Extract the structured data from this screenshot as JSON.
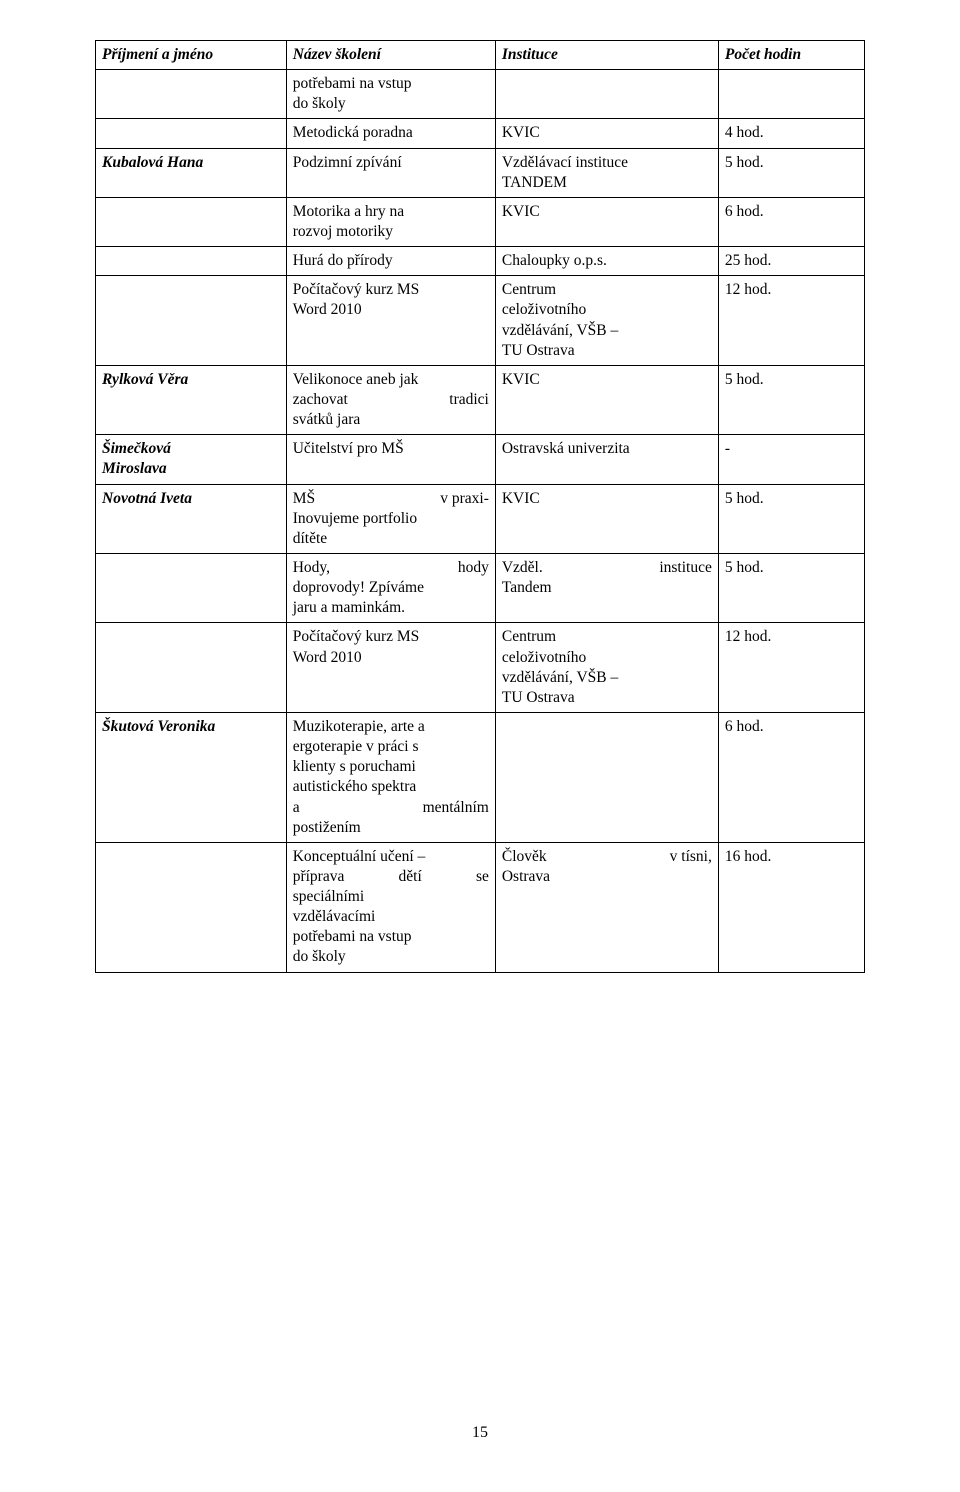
{
  "pagenum": "15",
  "headers": {
    "c1": "Příjmení a jméno",
    "c2": "Název školení",
    "c3": "Instituce",
    "c4": "Počet hodin"
  },
  "r0": {
    "c2a": "potřebami na vstup",
    "c2b": "do školy"
  },
  "r1": {
    "c2": "Metodická poradna",
    "c3": "KVIC",
    "c4": "4 hod."
  },
  "r2": {
    "c1": "Kubalová Hana",
    "c2": "Podzimní zpívání",
    "c3a": "Vzdělávací instituce",
    "c3b": "TANDEM",
    "c4": "5 hod."
  },
  "r3": {
    "c2a": "Motorika a hry na",
    "c2b": "rozvoj motoriky",
    "c3": "KVIC",
    "c4": "6 hod."
  },
  "r4": {
    "c2": "Hurá do přírody",
    "c3": "Chaloupky o.p.s.",
    "c4": "25 hod."
  },
  "r5": {
    "c2a": "Počítačový kurz MS",
    "c2b": "Word 2010",
    "c3a": "Centrum",
    "c3b": "celoživotního",
    "c3c": "vzdělávání, VŠB –",
    "c3d": "TU Ostrava",
    "c4": "12 hod."
  },
  "r6": {
    "c1": "Rylková Věra",
    "c2a": "Velikonoce aneb jak",
    "c2b1": "zachovat",
    "c2b2": "tradici",
    "c2c": "svátků jara",
    "c3": "KVIC",
    "c4": "5 hod."
  },
  "r7": {
    "c1a": "Šimečková",
    "c1b": "Miroslava",
    "c2": "Učitelství pro MŠ",
    "c3": "Ostravská univerzita",
    "c4": "-"
  },
  "r8": {
    "c1": "Novotná Iveta",
    "c2a1": "MŠ",
    "c2a2": "v praxi-",
    "c2b": "Inovujeme portfolio",
    "c2c": "dítěte",
    "c3": "KVIC",
    "c4": "5 hod."
  },
  "r9": {
    "c2a1": "Hody,",
    "c2a2": "hody",
    "c2b": "doprovody! Zpíváme",
    "c2c": "jaru a maminkám.",
    "c3a1": "Vzděl.",
    "c3a2": "instituce",
    "c3b": "Tandem",
    "c4": "5 hod."
  },
  "r10": {
    "c2a": "Počítačový kurz MS",
    "c2b": "Word 2010",
    "c3a": "Centrum",
    "c3b": "celoživotního",
    "c3c": "vzdělávání, VŠB –",
    "c3d": "TU Ostrava",
    "c4": "12 hod."
  },
  "r11": {
    "c1": "Škutová Veronika",
    "c2a": "Muzikoterapie, arte a",
    "c2b": "ergoterapie v práci s",
    "c2c": "klienty s poruchami",
    "c2d": "autistického spektra",
    "c2e1": "a",
    "c2e2": "mentálním",
    "c2f": "postižením",
    "c4": "6 hod."
  },
  "r12": {
    "c2a": "Konceptuální učení –",
    "c2b1": "příprava",
    "c2b2": "dětí",
    "c2b3": "se",
    "c2c": "speciálními",
    "c2d": "vzdělávacími",
    "c2e": "potřebami na vstup",
    "c2f": "do školy",
    "c3a1": "Člověk",
    "c3a2": "v tísni,",
    "c3b": "Ostrava",
    "c4": "16 hod."
  }
}
